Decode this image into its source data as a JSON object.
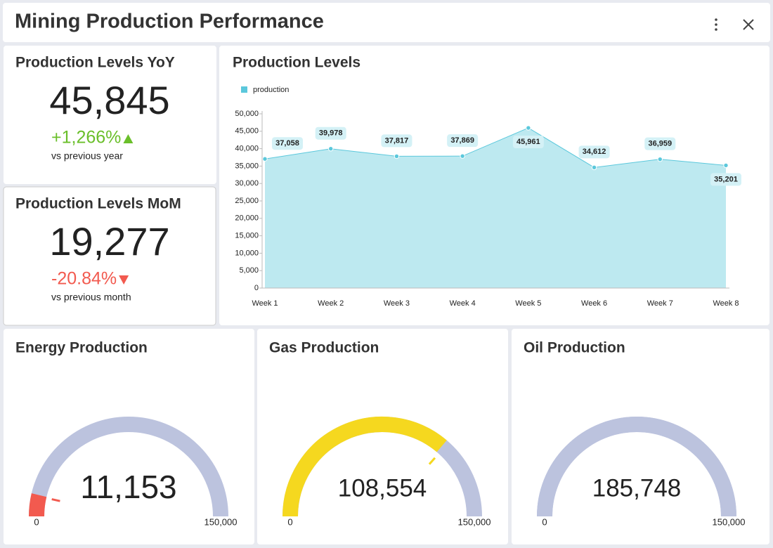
{
  "header": {
    "title": "Mining Production Performance"
  },
  "kpis": [
    {
      "title": "Production Levels YoY",
      "value": "45,845",
      "change": "+1,266%",
      "direction": "up",
      "note": "vs previous year"
    },
    {
      "title": "Production Levels MoM",
      "value": "19,277",
      "change": "-20.84%",
      "direction": "down",
      "note": "vs previous month"
    }
  ],
  "chart_data": [
    {
      "type": "area",
      "title": "Production Levels",
      "categories": [
        "Week 1",
        "Week 2",
        "Week 3",
        "Week 4",
        "Week 5",
        "Week 6",
        "Week 7",
        "Week 8"
      ],
      "series": [
        {
          "name": "production",
          "color": "#5bc8dc",
          "fill": "#bde9f0",
          "values": [
            37058,
            39978,
            37817,
            37869,
            45961,
            34612,
            36959,
            35201
          ],
          "value_labels": [
            "37,058",
            "39,978",
            "37,817",
            "37,869",
            "45,961",
            "34,612",
            "36,959",
            "35,201"
          ]
        }
      ],
      "ylim": [
        0,
        50000
      ],
      "yticks": [
        0,
        {
          "value": 5000,
          "label": "5,000"
        },
        {
          "value": 10000,
          "label": "10,000"
        },
        {
          "value": 15000,
          "label": "15,000"
        },
        {
          "value": 20000,
          "label": "20,000"
        },
        {
          "value": 25000,
          "label": "25,000"
        },
        {
          "value": 30000,
          "label": "30,000"
        },
        {
          "value": 35000,
          "label": "35,000"
        },
        {
          "value": 40000,
          "label": "40,000"
        },
        {
          "value": 45000,
          "label": "45,000"
        },
        {
          "value": 50000,
          "label": "50,000"
        }
      ],
      "legend": "top-left"
    },
    {
      "type": "gauge",
      "title": "Energy Production",
      "values": [
        11153
      ],
      "value_labels": [
        "11,153"
      ],
      "target": 10500,
      "color": "#f25a4f",
      "track": "#bcc3de",
      "ylim": [
        0,
        150000
      ],
      "yticks": [
        0,
        {
          "value": 150000,
          "label": "150,000"
        }
      ]
    },
    {
      "type": "gauge",
      "title": "Gas Production",
      "values": [
        108554
      ],
      "value_labels": [
        "108,554"
      ],
      "target": 110000,
      "color": "#f5d81f",
      "track": "#bcc3de",
      "ylim": [
        0,
        150000
      ],
      "yticks": [
        0,
        {
          "value": 150000,
          "label": "150,000"
        }
      ]
    },
    {
      "type": "gauge",
      "title": "Oil Production",
      "values": [
        185748
      ],
      "value_labels": [
        "185,748"
      ],
      "color": "#bcc3de",
      "track": "#bcc3de",
      "ylim": [
        0,
        150000
      ],
      "yticks": [
        0,
        {
          "value": 150000,
          "label": "150,000"
        }
      ]
    }
  ]
}
